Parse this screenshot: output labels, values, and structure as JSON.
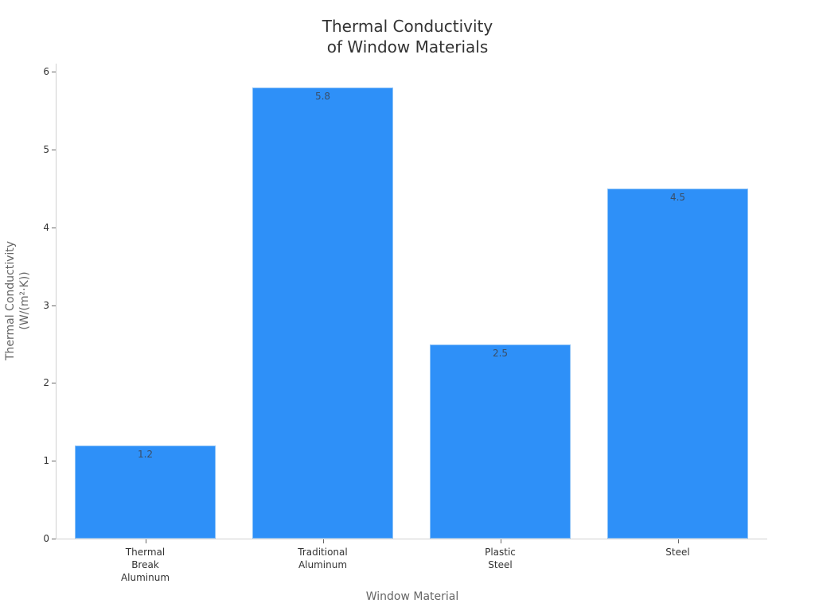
{
  "chart_data": {
    "type": "bar",
    "title": "Thermal Conductivity of Window Materials",
    "title_lines": [
      "Thermal Conductivity",
      "of Window Materials"
    ],
    "xlabel": "Window Material",
    "ylabel": "Thermal Conductivity (W/(m²·K))",
    "ylabel_lines": [
      "Thermal Conductivity",
      "(W/(m²·K))"
    ],
    "categories": [
      "Thermal Break Aluminum",
      "Traditional Aluminum",
      "Plastic Steel",
      "Steel"
    ],
    "category_lines": [
      [
        "Thermal",
        "Break",
        "Aluminum"
      ],
      [
        "Traditional",
        "Aluminum"
      ],
      [
        "Plastic",
        "Steel"
      ],
      [
        "Steel"
      ]
    ],
    "values": [
      1.2,
      5.8,
      2.5,
      4.5
    ],
    "value_labels": [
      "1.2",
      "5.8",
      "2.5",
      "4.5"
    ],
    "ylim": [
      0,
      6.1
    ],
    "yticks": [
      0,
      1,
      2,
      3,
      4,
      5,
      6
    ],
    "grid": false,
    "legend": null,
    "colors": {
      "bar": "#2e90f8",
      "bar_edge": "#8ec3f7",
      "axis": "#d0d0d0"
    }
  }
}
